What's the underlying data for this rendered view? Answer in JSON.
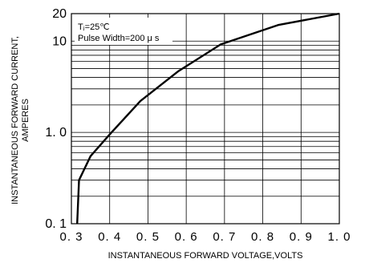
{
  "chart_data": {
    "type": "line",
    "xlabel": "INSTANTANEOUS FORWARD VOLTAGE,VOLTS",
    "ylabel_lines": [
      "INSTANTANEOUS FORWARD CURRENT,",
      "AMPERES"
    ],
    "annotation_lines": [
      "Tⱼ=25℃",
      "Pulse Width=200 μ s"
    ],
    "x_scale": "linear",
    "y_scale": "log",
    "xlim": [
      0.3,
      1.0
    ],
    "ylim": [
      0.1,
      20
    ],
    "x_ticks": [
      0.3,
      0.4,
      0.5,
      0.6,
      0.7,
      0.8,
      0.9,
      1.0
    ],
    "x_tick_labels": [
      "0. 3",
      "0. 4",
      "0. 5",
      "0. 6",
      "0. 7",
      "0. 8",
      "0. 9",
      "1. 0"
    ],
    "y_tick_values": [
      0.1,
      1.0,
      10,
      20
    ],
    "y_tick_labels": [
      "0. 1",
      "1. 0",
      "10",
      "20"
    ],
    "grid": true,
    "series": [
      {
        "x": [
          0.315,
          0.32,
          0.35,
          0.4,
          0.48,
          0.58,
          0.69,
          0.84,
          1.0
        ],
        "y": [
          0.1,
          0.3,
          0.55,
          0.95,
          2.2,
          4.7,
          9.2,
          15.0,
          20.0
        ]
      }
    ]
  }
}
